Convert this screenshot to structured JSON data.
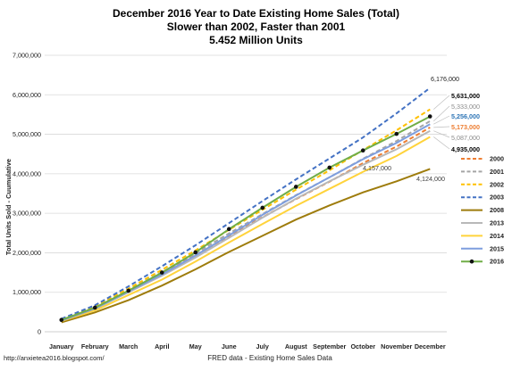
{
  "chart_data": {
    "type": "line",
    "title": "December 2016 Year to Date Existing Home Sales (Total)",
    "subtitle_1": "Slower than 2002, Faster than 2001",
    "subtitle_2": "5.452 Million Units",
    "xlabel": "FRED data - Existing Home Sales Data",
    "ylabel": "Total Units Sold - Cuumulative",
    "source_url": "http://anxietea2016.blogspot.com/",
    "categories": [
      "January",
      "February",
      "March",
      "April",
      "May",
      "June",
      "July",
      "August",
      "September",
      "October",
      "November",
      "December"
    ],
    "ylim": [
      0,
      7000000
    ],
    "yticks": [
      "0",
      "1,000,000",
      "2,000,000",
      "3,000,000",
      "4,000,000",
      "5,000,000",
      "6,000,000",
      "7,000,000"
    ],
    "grid": true,
    "legend_position": "right",
    "series": [
      {
        "name": "2000",
        "color": "#ED7D31",
        "dash": "dashed",
        "values": [
          290000,
          590000,
          1030000,
          1480000,
          1940000,
          2420000,
          2900000,
          3360000,
          3800000,
          4270000,
          4690000,
          5173000
        ]
      },
      {
        "name": "2001",
        "color": "#A5A5A5",
        "dash": "dashed",
        "values": [
          300000,
          610000,
          1050000,
          1510000,
          1990000,
          2490000,
          2980000,
          3460000,
          3910000,
          4380000,
          4830000,
          5333000
        ]
      },
      {
        "name": "2002",
        "color": "#FFC000",
        "dash": "dashed",
        "values": [
          310000,
          640000,
          1090000,
          1570000,
          2060000,
          2580000,
          3090000,
          3600000,
          4090000,
          4600000,
          5100000,
          5631000
        ]
      },
      {
        "name": "2003",
        "color": "#4472C4",
        "dash": "dashed",
        "values": [
          330000,
          670000,
          1150000,
          1660000,
          2190000,
          2750000,
          3310000,
          3860000,
          4390000,
          4920000,
          5530000,
          6176000
        ]
      },
      {
        "name": "2008",
        "color": "#9E7C0C",
        "dash": "solid",
        "values": [
          240000,
          490000,
          800000,
          1170000,
          1580000,
          2020000,
          2430000,
          2840000,
          3200000,
          3530000,
          3810000,
          4124000
        ]
      },
      {
        "name": "2013",
        "color": "#B8B8B8",
        "dash": "solid",
        "values": [
          290000,
          580000,
          1000000,
          1420000,
          1880000,
          2380000,
          2890000,
          3370000,
          3810000,
          4230000,
          4620000,
          5087000
        ]
      },
      {
        "name": "2014",
        "color": "#FFD33B",
        "dash": "solid",
        "values": [
          270000,
          540000,
          930000,
          1320000,
          1780000,
          2260000,
          2730000,
          3190000,
          3620000,
          4050000,
          4450000,
          4935000
        ]
      },
      {
        "name": "2015",
        "color": "#7E9EDE",
        "dash": "solid",
        "values": [
          280000,
          590000,
          1020000,
          1450000,
          1930000,
          2440000,
          2960000,
          3450000,
          3910000,
          4370000,
          4780000,
          5256000
        ]
      },
      {
        "name": "2016",
        "color": "#70AD47",
        "dash": "solid",
        "marker": "circle",
        "values": [
          300000,
          610000,
          1040000,
          1500000,
          2010000,
          2600000,
          3140000,
          3670000,
          4157000,
          4590000,
          5010000,
          5452000
        ]
      }
    ],
    "annotations": [
      {
        "text": "6,176,000",
        "color": "#222222",
        "bold": false
      },
      {
        "text": "5,631,000",
        "color": "#000000",
        "bold": true
      },
      {
        "text": "5,333,000",
        "color": "#8C8C8C",
        "bold": false
      },
      {
        "text": "5,256,000",
        "color": "#2E75B6",
        "bold": true
      },
      {
        "text": "5,173,000",
        "color": "#ED7D31",
        "bold": true
      },
      {
        "text": "5,087,000",
        "color": "#8C8C8C",
        "bold": false
      },
      {
        "text": "4,935,000",
        "color": "#000000",
        "bold": true
      },
      {
        "text": "4,124,000",
        "color": "#404040",
        "bold": false
      },
      {
        "text": "4,157,000",
        "color": "#404040",
        "bold": false
      }
    ]
  }
}
